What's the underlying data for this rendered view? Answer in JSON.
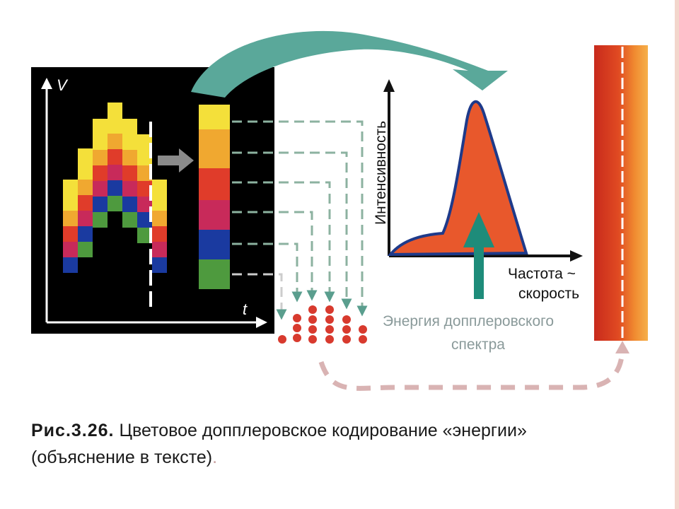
{
  "labels": {
    "v_axis": "V",
    "t_axis": "t",
    "y_axis": "Интенсивность",
    "x_axis_line1": "Частота ~",
    "x_axis_line2": "скорость",
    "energy_line1": "Энергия допплеровского",
    "energy_line2": "спектра"
  },
  "caption": {
    "figure": "Рис.3.26.",
    "line1": "Цветовое допплеровское кодирование «энергии»",
    "line2": "(объяснение в тексте)",
    "dot": "."
  },
  "colors": {
    "background_panel": "#000000",
    "arrow_teal": "#5aa89a",
    "peak_fill": "#e8582c",
    "peak_outline": "#1e3a8a",
    "dots_red": "#d83a2e",
    "bar_red": "#d8341e",
    "bar_orange": "#f2a23a"
  },
  "spectrum_colors": [
    "#f4e03a",
    "#f0a830",
    "#e03c2a",
    "#c82a5a",
    "#1a3aa0",
    "#4e9a3e"
  ]
}
